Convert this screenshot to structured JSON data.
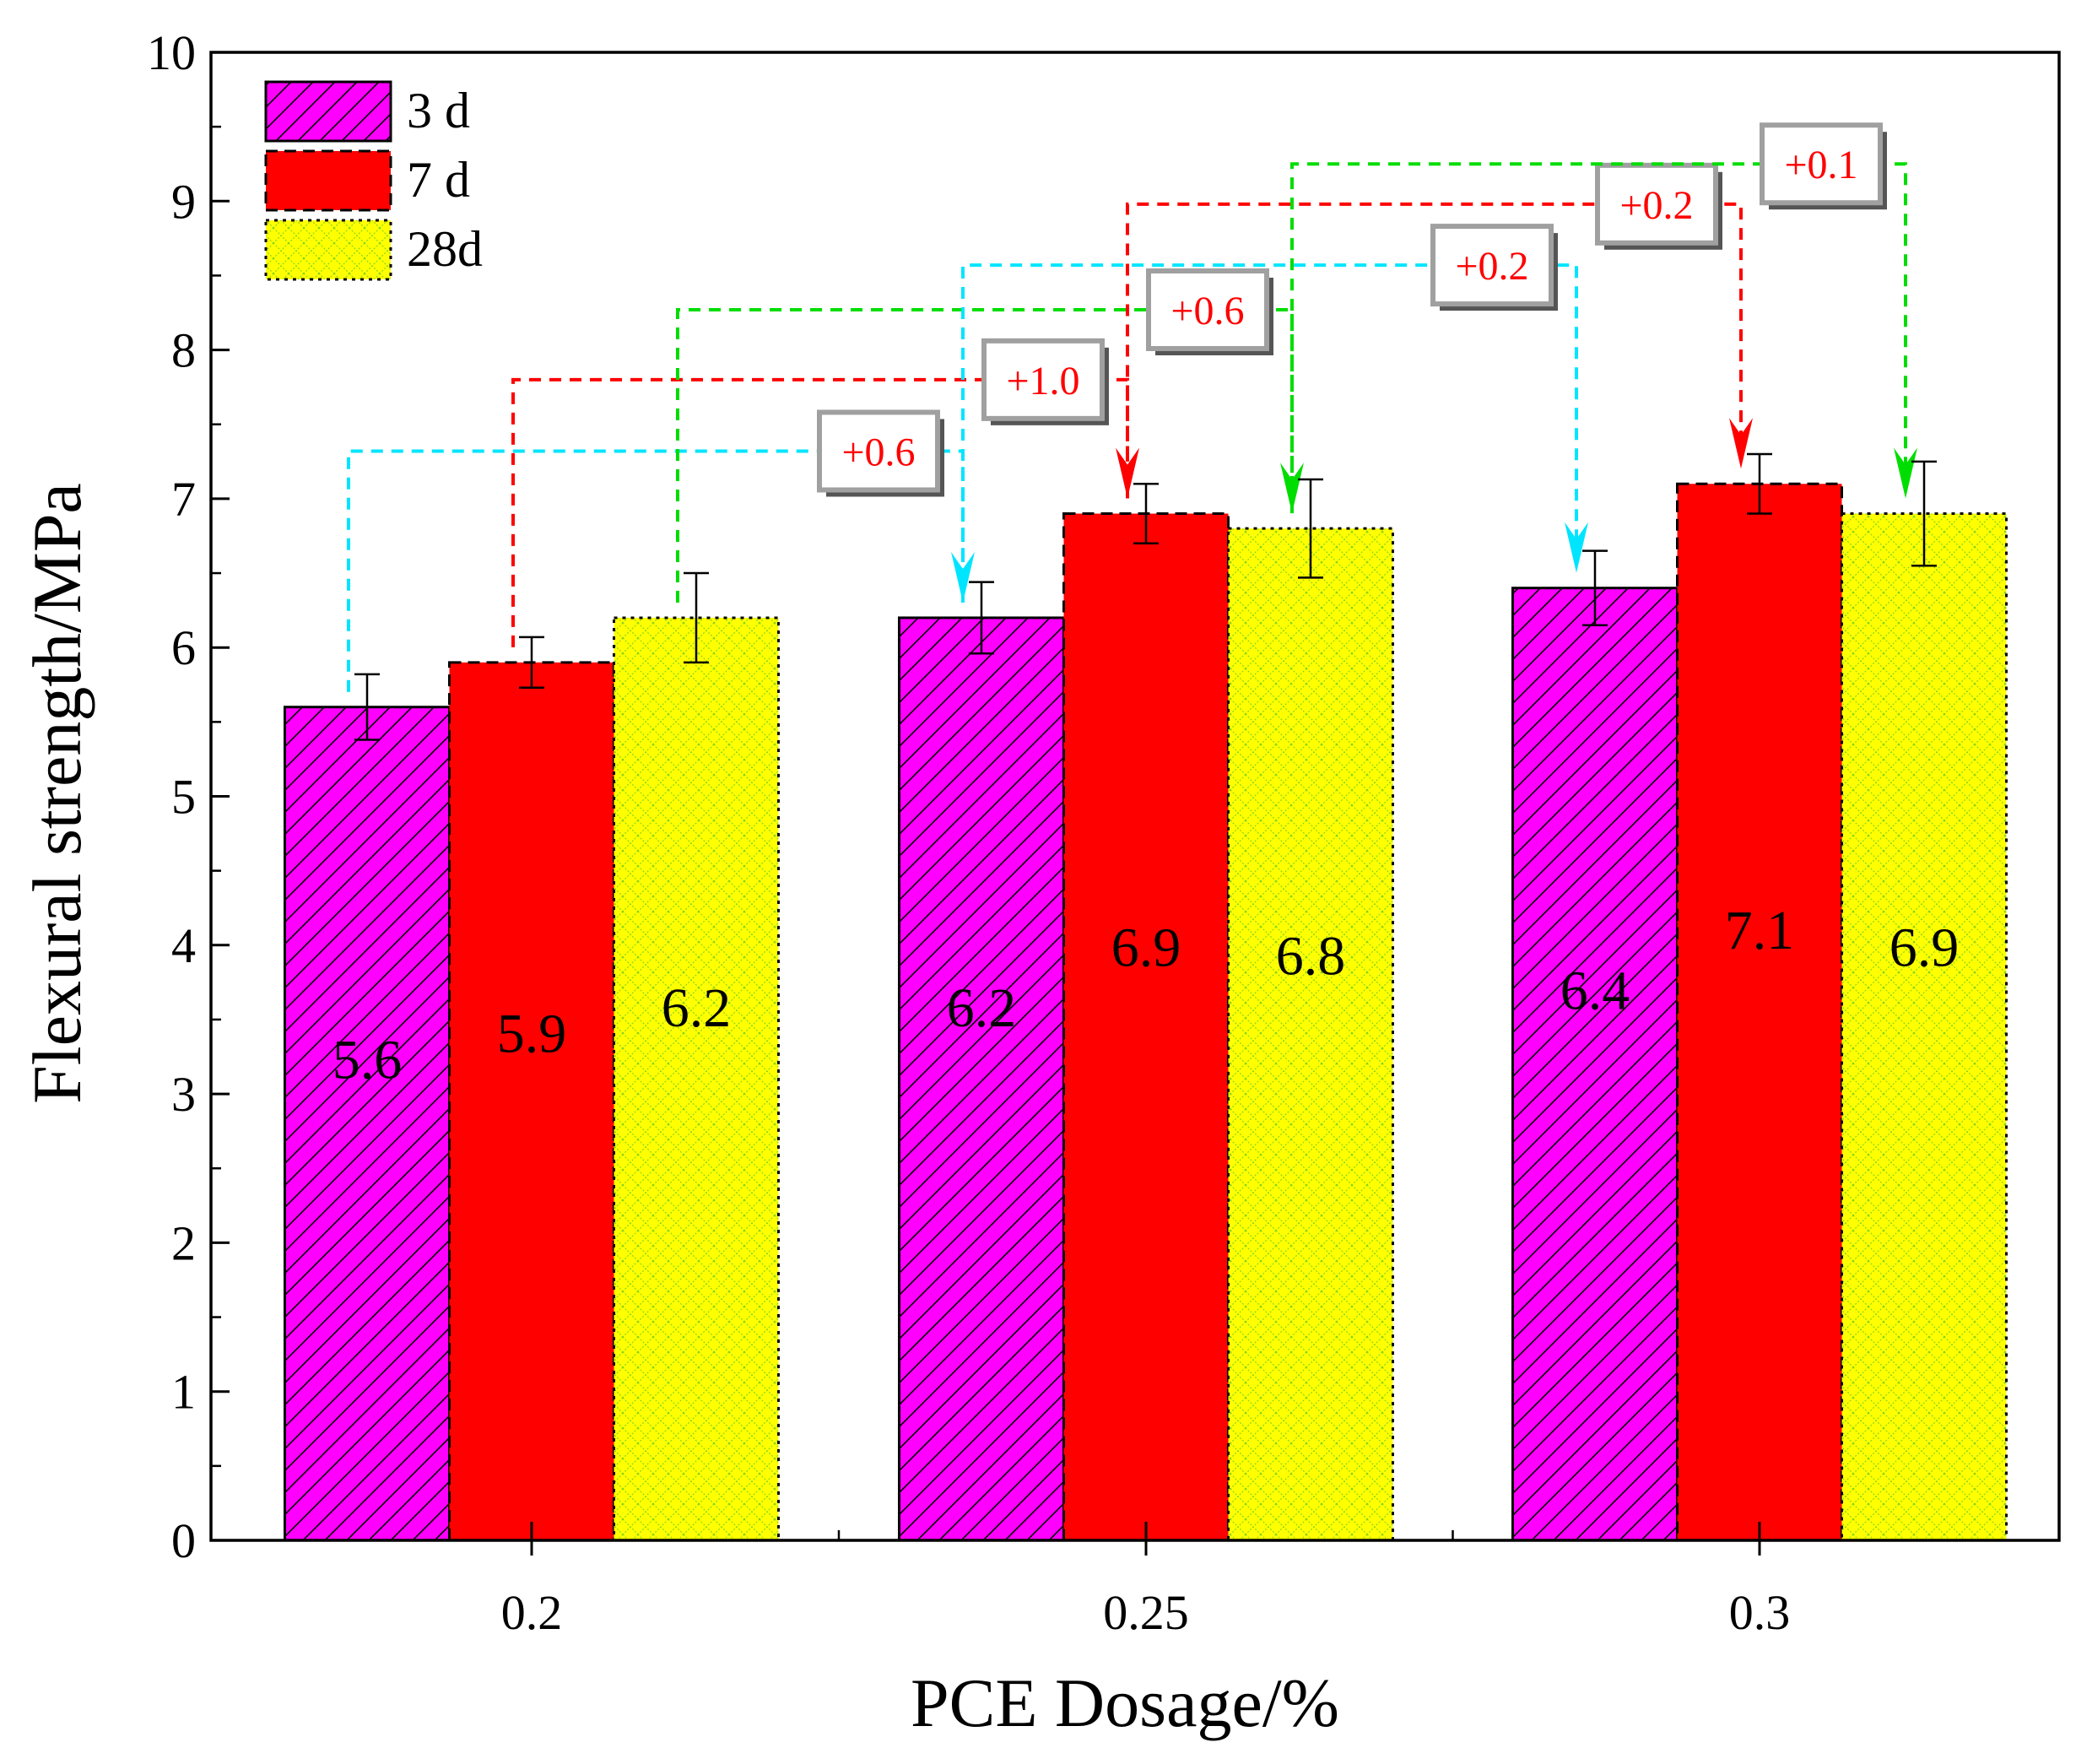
{
  "chart_data": {
    "type": "bar",
    "title": "",
    "xlabel": "PCE Dosage/%",
    "ylabel": "Flexural strength/MPa",
    "ylim": [
      0,
      10
    ],
    "yticks": [
      "0",
      "1",
      "2",
      "3",
      "4",
      "5",
      "6",
      "7",
      "8",
      "9",
      "10"
    ],
    "categories": [
      "0.2",
      "0.25",
      "0.3"
    ],
    "series": [
      {
        "name": "3 d",
        "values": [
          5.6,
          6.2,
          6.4
        ],
        "errors": [
          0.22,
          0.24,
          0.25
        ],
        "labels": [
          "5.6",
          "6.2",
          "6.4"
        ],
        "color": "#ff00ff",
        "pattern": "diagonal-hatch",
        "border": "solid"
      },
      {
        "name": "7 d",
        "values": [
          5.9,
          6.9,
          7.1
        ],
        "errors": [
          0.17,
          0.2,
          0.2
        ],
        "labels": [
          "5.9",
          "6.9",
          "7.1"
        ],
        "color": "#ff0000",
        "pattern": "solid",
        "border": "dashed"
      },
      {
        "name": "28d",
        "values": [
          6.2,
          6.8,
          6.9
        ],
        "errors": [
          0.3,
          0.33,
          0.35
        ],
        "labels": [
          "6.2",
          "6.8",
          "6.9"
        ],
        "color": "#ffff00",
        "pattern": "crosshatch",
        "border": "dotted"
      }
    ],
    "legend": {
      "position": "top-left"
    },
    "grid": false,
    "annotations": [
      {
        "text": "+0.6",
        "series": 0,
        "from": 0,
        "to": 1,
        "level": 7.32,
        "color": "#00e5ff"
      },
      {
        "text": "+1.0",
        "series": 1,
        "from": 0,
        "to": 1,
        "level": 7.8,
        "color": "#ff0000"
      },
      {
        "text": "+0.6",
        "series": 2,
        "from": 0,
        "to": 1,
        "level": 8.27,
        "color": "#00dd00"
      },
      {
        "text": "+0.2",
        "series": 0,
        "from": 1,
        "to": 2,
        "level": 8.57,
        "color": "#00e5ff"
      },
      {
        "text": "+0.2",
        "series": 1,
        "from": 1,
        "to": 2,
        "level": 8.98,
        "color": "#ff0000"
      },
      {
        "text": "+0.1",
        "series": 2,
        "from": 1,
        "to": 2,
        "level": 9.25,
        "color": "#00dd00"
      }
    ],
    "annotation_text_color": "#ff0000"
  }
}
